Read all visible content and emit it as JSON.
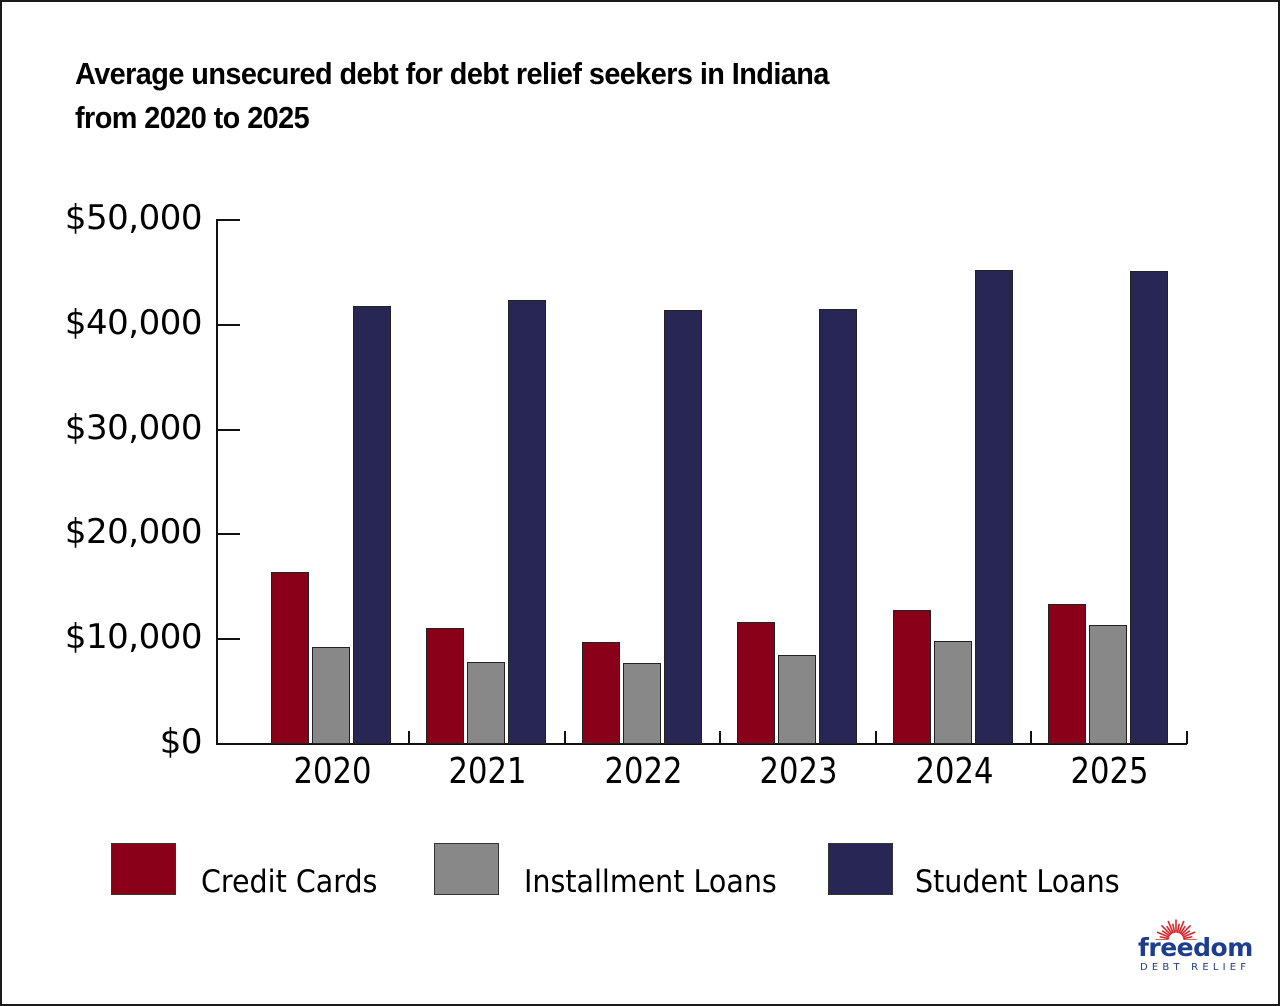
{
  "title": {
    "line1": "Average unsecured debt for debt relief seekers in Indiana",
    "line2": "from 2020 to 2025"
  },
  "colors": {
    "credit_cards": "#8b0019",
    "installment_loans": "#888888",
    "student_loans": "#272654",
    "axis": "#111111",
    "logo_blue": "#1d3d8f",
    "logo_red": "#d7262b"
  },
  "y_axis": {
    "ticks": [
      "$0",
      "$10,000",
      "$20,000",
      "$30,000",
      "$40,000",
      "$50,000"
    ]
  },
  "x_axis": {
    "categories": [
      "2020",
      "2021",
      "2022",
      "2023",
      "2024",
      "2025"
    ]
  },
  "legend": {
    "items": [
      {
        "label": "Credit Cards"
      },
      {
        "label": "Installment Loans"
      },
      {
        "label": "Student Loans"
      }
    ]
  },
  "logo": {
    "word": "freedom",
    "sub": "DEBT RELIEF"
  },
  "chart_data": {
    "type": "bar",
    "title": "Average unsecured debt for debt relief seekers in Indiana from 2020 to 2025",
    "xlabel": "",
    "ylabel": "",
    "categories": [
      "2020",
      "2021",
      "2022",
      "2023",
      "2024",
      "2025"
    ],
    "series": [
      {
        "name": "Credit Cards",
        "color": "#8b0019",
        "values": [
          16400,
          11100,
          9700,
          11600,
          12800,
          13400
        ]
      },
      {
        "name": "Installment Loans",
        "color": "#888888",
        "values": [
          9300,
          7800,
          7700,
          8500,
          9800,
          11400
        ]
      },
      {
        "name": "Student Loans",
        "color": "#272654",
        "values": [
          41800,
          42400,
          41400,
          41500,
          45200,
          45100
        ]
      }
    ],
    "ylim": [
      0,
      50000
    ],
    "yticks": [
      0,
      10000,
      20000,
      30000,
      40000,
      50000
    ],
    "ytick_labels": [
      "$0",
      "$10,000",
      "$20,000",
      "$30,000",
      "$40,000",
      "$50,000"
    ],
    "grid": false,
    "legend_position": "bottom"
  }
}
